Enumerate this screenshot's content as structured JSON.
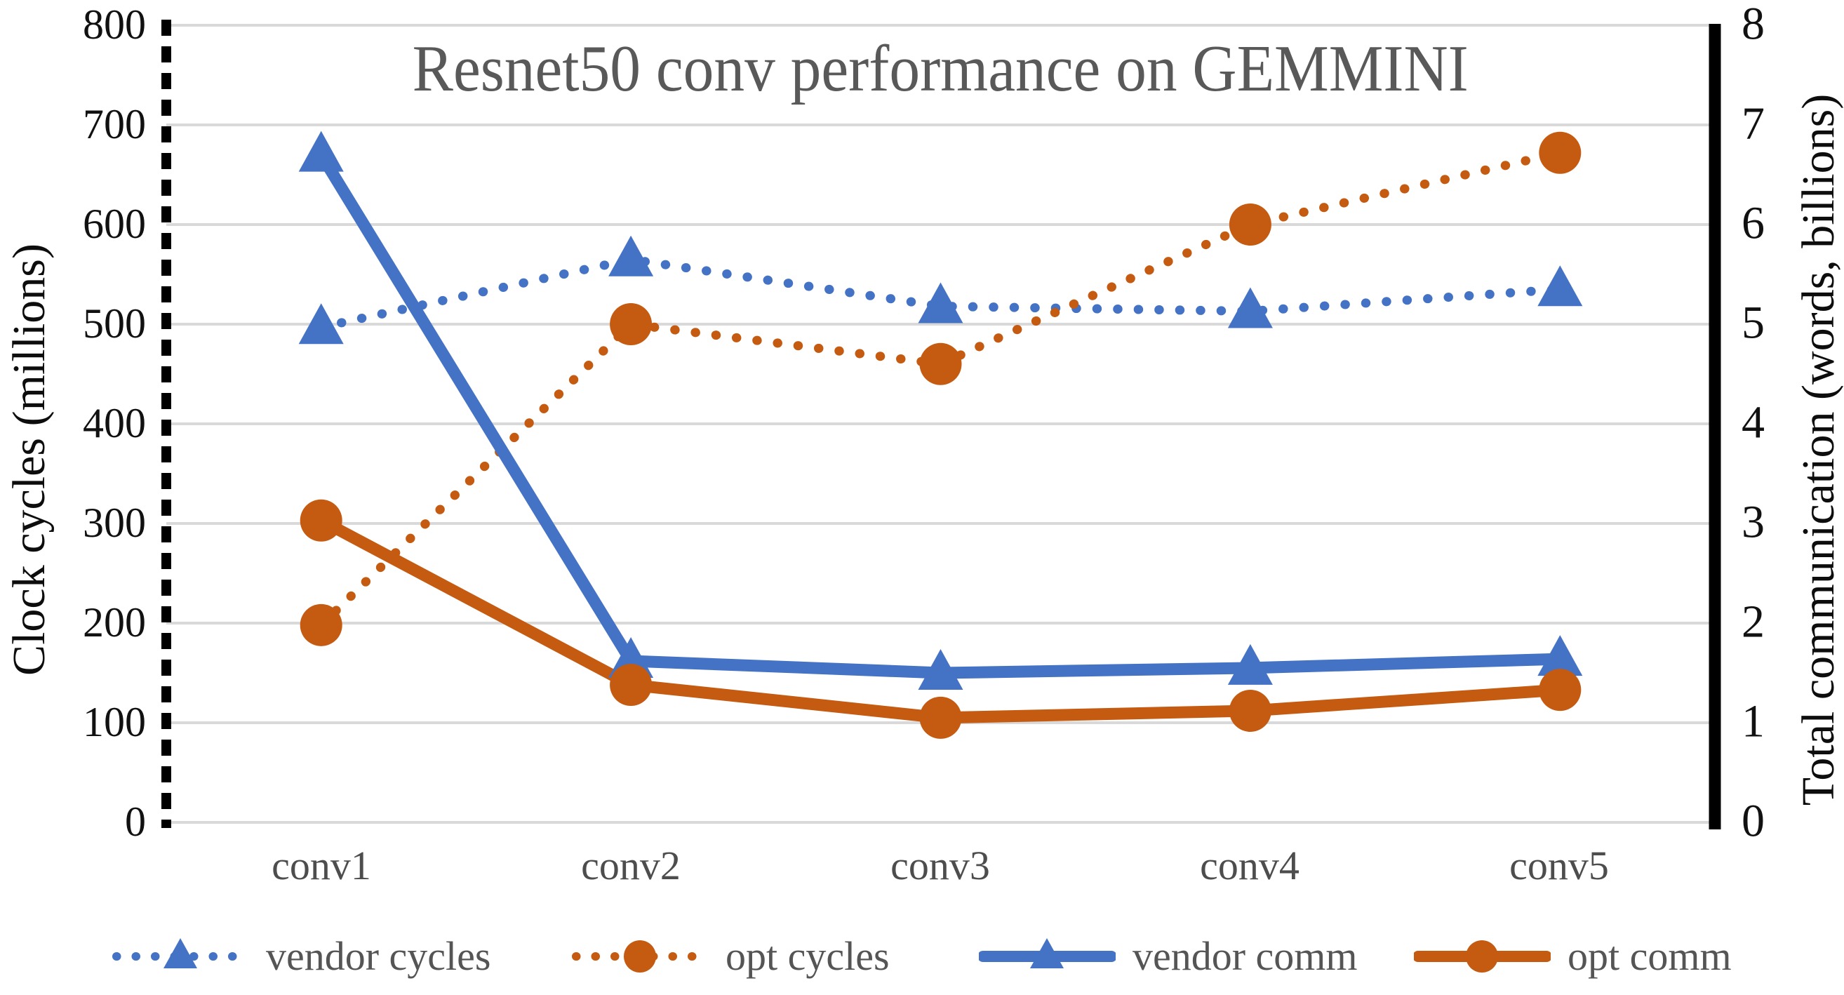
{
  "title": "Resnet50 conv performance on GEMMINI",
  "left_axis": {
    "label": "Clock cycles (millions)",
    "min": 0,
    "max": 800,
    "ticks": [
      "800",
      "700",
      "600",
      "500",
      "400",
      "300",
      "200",
      "100",
      "0"
    ]
  },
  "right_axis": {
    "label": "Total communication (words, billions)",
    "min": 0,
    "max": 8,
    "ticks": [
      "8",
      "7",
      "6",
      "5",
      "4",
      "3",
      "2",
      "1",
      "0"
    ]
  },
  "colors": {
    "blue": "#4472C4",
    "orange": "#C55A11",
    "title_gray": "#595959",
    "gridline": "#D9D9D9",
    "axis_black": "#000000"
  },
  "chart_data": {
    "type": "line",
    "title": "Resnet50 conv performance on GEMMINI",
    "categories": [
      "conv1",
      "conv2",
      "conv3",
      "conv4",
      "conv5"
    ],
    "xlabel": "",
    "ylabel_left": "Clock cycles (millions)",
    "ylabel_right": "Total communication (words, billions)",
    "left_ylim": [
      0,
      800
    ],
    "right_ylim": [
      0,
      8
    ],
    "grid": true,
    "legend_position": "bottom",
    "series": [
      {
        "name": "vendor cycles",
        "axis": "left",
        "unit": "million cycles",
        "line": "dotted",
        "marker": "triangle",
        "color": "#4472C4",
        "values": [
          497,
          565,
          518,
          513,
          535
        ]
      },
      {
        "name": "opt cycles",
        "axis": "left",
        "unit": "million cycles",
        "line": "dotted",
        "marker": "circle",
        "color": "#C55A11",
        "values": [
          198,
          500,
          460,
          600,
          672
        ]
      },
      {
        "name": "vendor comm",
        "axis": "right",
        "unit": "billion words",
        "line": "solid",
        "marker": "triangle",
        "color": "#4472C4",
        "values": [
          6.7,
          1.62,
          1.5,
          1.55,
          1.64
        ]
      },
      {
        "name": "opt comm",
        "axis": "right",
        "unit": "billion words",
        "line": "solid",
        "marker": "circle",
        "color": "#C55A11",
        "values": [
          3.03,
          1.38,
          1.05,
          1.12,
          1.33
        ]
      }
    ]
  }
}
